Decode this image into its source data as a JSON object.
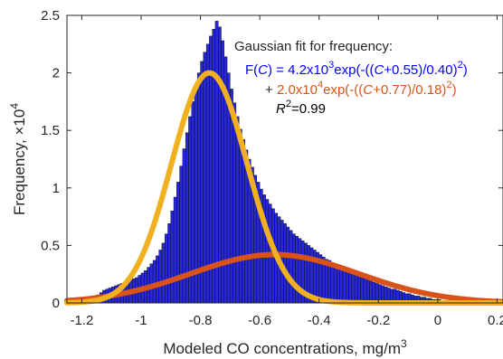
{
  "chart_data": {
    "type": "bar",
    "xlabel": "Modeled CO concentrations, mg/m",
    "xlabel_sup": "3",
    "ylabel": "Frequency, ×10",
    "ylabel_sup": "4",
    "xlim": [
      -1.25,
      0.22
    ],
    "ylim": [
      0,
      2.5
    ],
    "xticks": [
      -1.2,
      -1,
      -0.8,
      -0.6,
      -0.4,
      -0.2,
      0,
      0.2
    ],
    "xtick_labels": [
      "-1.2",
      "-1",
      "-0.8",
      "-0.6",
      "-0.4",
      "-0.2",
      "0",
      "0.2"
    ],
    "yticks": [
      0,
      0.5,
      1,
      1.5,
      2,
      2.5
    ],
    "ytick_labels": [
      "0",
      "0.5",
      "1",
      "1.5",
      "2",
      "2.5"
    ],
    "grid": false,
    "colors": {
      "bars": "#2828d8",
      "fit_total": "#f0b020",
      "fit_component": "#d95319",
      "axis": "#262626"
    },
    "histogram": {
      "bin_start": -1.2,
      "bin_width": 0.01,
      "values": [
        0.01,
        0.02,
        0.03,
        0.04,
        0.05,
        0.07,
        0.09,
        0.11,
        0.12,
        0.13,
        0.14,
        0.15,
        0.16,
        0.17,
        0.18,
        0.19,
        0.2,
        0.21,
        0.22,
        0.24,
        0.26,
        0.28,
        0.31,
        0.34,
        0.37,
        0.41,
        0.46,
        0.52,
        0.6,
        0.69,
        0.8,
        0.92,
        1.05,
        1.19,
        1.34,
        1.48,
        1.62,
        1.75,
        1.88,
        2.0,
        2.1,
        2.18,
        2.25,
        2.32,
        2.38,
        2.45,
        2.4,
        2.28,
        2.14,
        2.0,
        1.86,
        1.74,
        1.62,
        1.51,
        1.42,
        1.33,
        1.25,
        1.18,
        1.11,
        1.05,
        0.99,
        0.94,
        0.9,
        0.86,
        0.82,
        0.78,
        0.75,
        0.72,
        0.69,
        0.66,
        0.63,
        0.6,
        0.58,
        0.56,
        0.54,
        0.52,
        0.5,
        0.48,
        0.46,
        0.44,
        0.42,
        0.4,
        0.38,
        0.37,
        0.35,
        0.34,
        0.32,
        0.31,
        0.3,
        0.28,
        0.27,
        0.26,
        0.25,
        0.24,
        0.22,
        0.21,
        0.2,
        0.19,
        0.18,
        0.17,
        0.16,
        0.15,
        0.14,
        0.13,
        0.12,
        0.12,
        0.11,
        0.1,
        0.09,
        0.08,
        0.08,
        0.07,
        0.06,
        0.06,
        0.05,
        0.05,
        0.04,
        0.04,
        0.03,
        0.03,
        0.03,
        0.02,
        0.02,
        0.02,
        0.02,
        0.01,
        0.01,
        0.01,
        0.01,
        0.01,
        0.01
      ]
    },
    "fits": [
      {
        "role": "component",
        "amplitude": 0.42,
        "center": -0.55,
        "width": 0.4
      },
      {
        "role": "total",
        "amplitude": 2.0,
        "center": -0.77,
        "width": 0.18
      }
    ],
    "annotation": {
      "title": "Gaussian fit for frequency:",
      "eq1_prefix": "F(",
      "eq1_var": "C",
      "eq1_mid": ") = 4.2x10",
      "eq1_sup": "3",
      "eq1_exp": "exp(-((",
      "eq1_var2": "C",
      "eq1_tail": "+0.55)/0.40)",
      "eq1_sup2": "2",
      "eq1_close": ")",
      "eq2_plus": "+ ",
      "eq2_mid": "2.0x10",
      "eq2_sup": "4",
      "eq2_exp": "exp(-((",
      "eq2_var": "C",
      "eq2_tail": "+0.77)/0.18)",
      "eq2_sup2": "2",
      "eq2_close": ")",
      "r2_var": "R",
      "r2_sup": "2",
      "r2_val": "=0.99"
    }
  }
}
